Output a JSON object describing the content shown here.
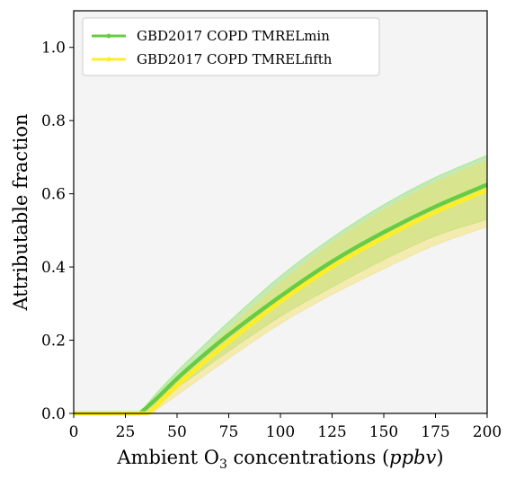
{
  "chart_data": {
    "type": "line",
    "xlabel_prefix": "Ambient O",
    "xlabel_subscript": "3",
    "xlabel_mid": " concentrations (",
    "xlabel_unit": "ppbv",
    "xlabel_suffix": ")",
    "ylabel": "Attributable fraction",
    "xlim": [
      0,
      200
    ],
    "ylim": [
      0,
      1.1
    ],
    "xticks": [
      0,
      25,
      50,
      75,
      100,
      125,
      150,
      175,
      200
    ],
    "yticks": [
      0.0,
      0.2,
      0.4,
      0.6,
      0.8,
      1.0
    ],
    "ytick_labels": [
      "0.0",
      "0.2",
      "0.4",
      "0.6",
      "0.8",
      "1.0"
    ],
    "legend_position": "top-left",
    "background": "#f4f4f4",
    "series": [
      {
        "name": "GBD2017 COPD TMRELmin",
        "color": "#66cc44",
        "band_color": "#88dd66",
        "x": [
          0,
          32,
          40,
          50,
          60,
          75,
          100,
          125,
          150,
          175,
          200
        ],
        "y": [
          0,
          0,
          0.04,
          0.095,
          0.145,
          0.215,
          0.32,
          0.415,
          0.495,
          0.565,
          0.625
        ],
        "lower": [
          0,
          0,
          0.025,
          0.07,
          0.11,
          0.17,
          0.265,
          0.345,
          0.42,
          0.485,
          0.53
        ],
        "upper": [
          0,
          0,
          0.055,
          0.115,
          0.17,
          0.25,
          0.375,
          0.48,
          0.57,
          0.645,
          0.705
        ]
      },
      {
        "name": "GBD2017 COPD TMRELfifth",
        "color": "#ffee22",
        "band_color": "#f5e060",
        "x": [
          0,
          36,
          40,
          50,
          60,
          75,
          100,
          125,
          150,
          175,
          200
        ],
        "y": [
          0,
          0,
          0.02,
          0.075,
          0.125,
          0.195,
          0.305,
          0.4,
          0.48,
          0.55,
          0.61
        ],
        "lower": [
          0,
          0,
          0.01,
          0.05,
          0.09,
          0.15,
          0.245,
          0.325,
          0.395,
          0.46,
          0.51
        ],
        "upper": [
          0,
          0,
          0.03,
          0.095,
          0.15,
          0.23,
          0.355,
          0.465,
          0.555,
          0.63,
          0.69
        ]
      }
    ]
  }
}
